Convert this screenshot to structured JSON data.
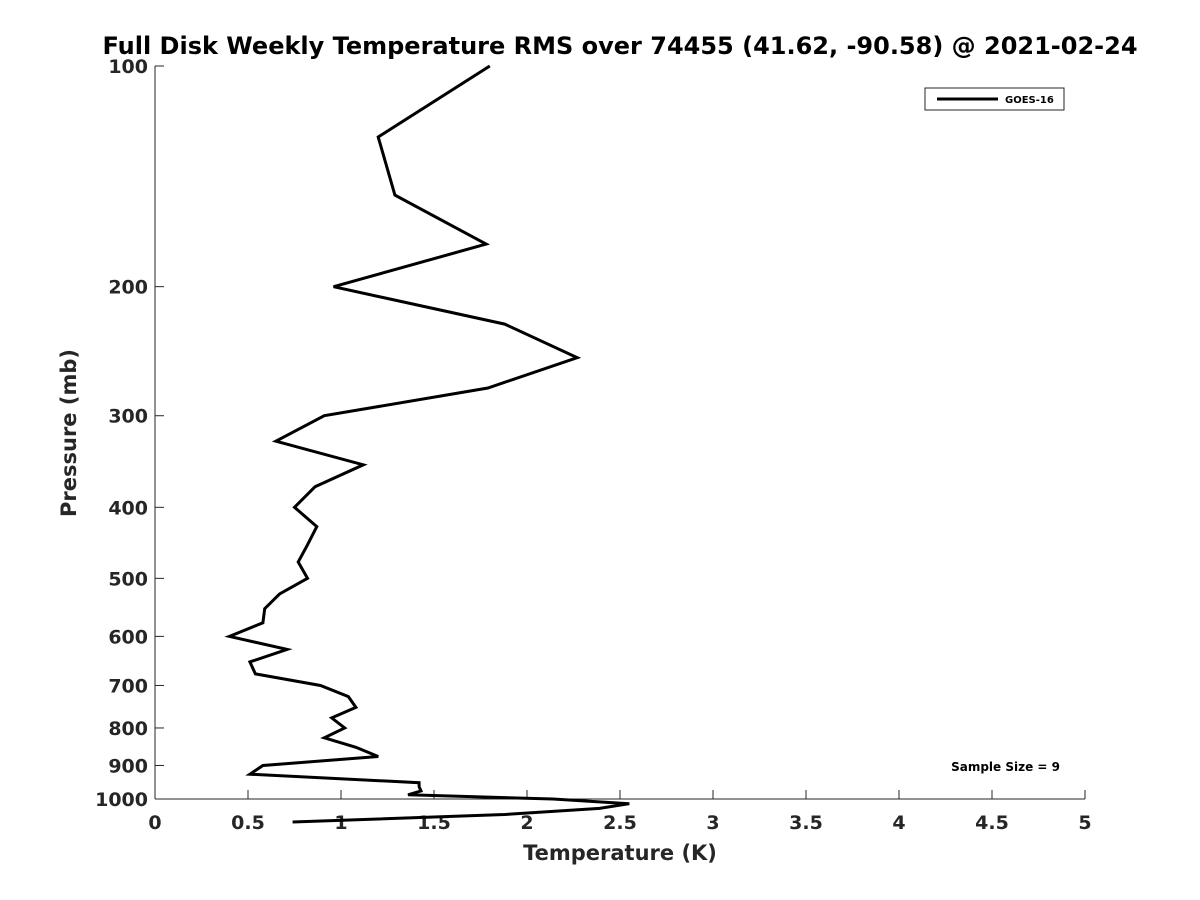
{
  "chart_data": {
    "type": "line",
    "title": "Full Disk Weekly Temperature RMS over 74455 (41.62, -90.58) @ 2021-02-24",
    "xlabel": "Temperature (K)",
    "ylabel": "Pressure (mb)",
    "xlim": [
      0,
      5
    ],
    "ylim": [
      100,
      1000
    ],
    "y_scale": "log",
    "y_reversed": true,
    "x_ticks": [
      "0",
      "0.5",
      "1",
      "1.5",
      "2",
      "2.5",
      "3",
      "3.5",
      "4",
      "4.5",
      "5"
    ],
    "y_ticks": [
      "100",
      "200",
      "300",
      "400",
      "500",
      "600",
      "700",
      "800",
      "900",
      "1000"
    ],
    "grid": false,
    "legend_position": "top-right",
    "annotation": "Sample Size = 9",
    "series": [
      {
        "name": "GOES-16",
        "color": "#000000",
        "points": [
          [
            1.8,
            100
          ],
          [
            1.2,
            125
          ],
          [
            1.29,
            150
          ],
          [
            1.78,
            175
          ],
          [
            0.96,
            200
          ],
          [
            1.88,
            225
          ],
          [
            2.27,
            250
          ],
          [
            1.79,
            275
          ],
          [
            0.91,
            300
          ],
          [
            0.65,
            325
          ],
          [
            1.12,
            350
          ],
          [
            0.86,
            375
          ],
          [
            0.75,
            400
          ],
          [
            0.87,
            425
          ],
          [
            0.82,
            450
          ],
          [
            0.77,
            475
          ],
          [
            0.82,
            500
          ],
          [
            0.67,
            525
          ],
          [
            0.59,
            550
          ],
          [
            0.58,
            575
          ],
          [
            0.4,
            600
          ],
          [
            0.71,
            625
          ],
          [
            0.51,
            650
          ],
          [
            0.54,
            675
          ],
          [
            0.89,
            700
          ],
          [
            1.04,
            725
          ],
          [
            1.08,
            750
          ],
          [
            0.95,
            775
          ],
          [
            1.02,
            800
          ],
          [
            0.91,
            825
          ],
          [
            1.08,
            850
          ],
          [
            1.2,
            875
          ],
          [
            0.58,
            900
          ],
          [
            0.51,
            925
          ],
          [
            1.42,
            950
          ],
          [
            1.42,
            962
          ],
          [
            1.43,
            975
          ],
          [
            1.36,
            987
          ],
          [
            2.14,
            1000
          ],
          [
            2.55,
            1015
          ],
          [
            2.39,
            1030
          ],
          [
            1.88,
            1050
          ],
          [
            0.74,
            1075
          ]
        ]
      }
    ]
  }
}
